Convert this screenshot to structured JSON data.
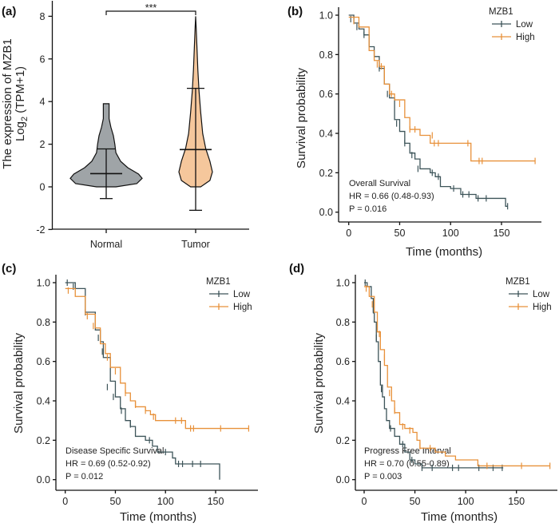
{
  "colors": {
    "low": "#3d5459",
    "high": "#e8913a",
    "normal_fill": "#9fa4a7",
    "tumor_fill": "#f5c79c"
  },
  "chart_data": [
    {
      "panel": "(a)",
      "type": "violin",
      "ylabel_line1": "The expression of MZB1",
      "ylabel_line2_base": "Log",
      "ylabel_line2_sub": "2",
      "ylabel_line2_rest": " (TPM+1)",
      "ylim": [
        -2,
        8
      ],
      "yticks": [
        "-2",
        "0",
        "2",
        "4",
        "6",
        "8"
      ],
      "categories": [
        "Normal",
        "Tumor"
      ],
      "significance": "***",
      "groups": [
        {
          "name": "Normal",
          "mean": 0.62,
          "lower": -0.55,
          "upper": 1.78,
          "density": [
            [
              0,
              0.27
            ],
            [
              0.15,
              0.85
            ],
            [
              0.4,
              1
            ],
            [
              0.6,
              0.9
            ],
            [
              0.9,
              0.6
            ],
            [
              1.2,
              0.4
            ],
            [
              1.6,
              0.27
            ],
            [
              2.0,
              0.24
            ],
            [
              2.4,
              0.2
            ],
            [
              2.8,
              0.13
            ],
            [
              3.2,
              0.08
            ],
            [
              3.9,
              0.08
            ]
          ]
        },
        {
          "name": "Tumor",
          "mean": 1.75,
          "lower": -1.1,
          "upper": 4.62,
          "density": [
            [
              0,
              0.3
            ],
            [
              0.3,
              0.85
            ],
            [
              0.7,
              1
            ],
            [
              1.2,
              0.85
            ],
            [
              1.8,
              0.6
            ],
            [
              2.5,
              0.42
            ],
            [
              3.5,
              0.3
            ],
            [
              4.5,
              0.2
            ],
            [
              5.5,
              0.13
            ],
            [
              6.5,
              0.08
            ],
            [
              7.5,
              0.03
            ],
            [
              8,
              0
            ]
          ]
        }
      ]
    },
    {
      "panel": "(b)",
      "type": "line",
      "xlabel": "Time (months)",
      "ylabel": "Survival probability",
      "xticks": [
        "0",
        "50",
        "100",
        "150"
      ],
      "yticks": [
        "0.0",
        "0.2",
        "0.4",
        "0.6",
        "0.8",
        "1.0"
      ],
      "legend_title": "MZB1",
      "legend_position": "top-right",
      "annotation": [
        "Overall Survival",
        "HR = 0.66 (0.48-0.93)",
        "P = 0.016"
      ],
      "series": [
        {
          "name": "Low",
          "end": 156,
          "steps": [
            [
              0,
              1
            ],
            [
              5,
              0.96
            ],
            [
              10,
              0.93
            ],
            [
              15,
              0.9
            ],
            [
              20,
              0.84
            ],
            [
              25,
              0.79
            ],
            [
              30,
              0.73
            ],
            [
              35,
              0.65
            ],
            [
              40,
              0.58
            ],
            [
              45,
              0.47
            ],
            [
              50,
              0.41
            ],
            [
              55,
              0.35
            ],
            [
              60,
              0.3
            ],
            [
              65,
              0.27
            ],
            [
              70,
              0.22
            ],
            [
              80,
              0.2
            ],
            [
              85,
              0.18
            ],
            [
              90,
              0.13
            ],
            [
              100,
              0.12
            ],
            [
              110,
              0.09
            ],
            [
              125,
              0.07
            ],
            [
              154,
              0.03
            ]
          ],
          "censored": [
            [
              2,
              0.98
            ],
            [
              8,
              0.94
            ],
            [
              15,
              0.9
            ],
            [
              30,
              0.73
            ],
            [
              38,
              0.6
            ],
            [
              47,
              0.45
            ],
            [
              55,
              0.35
            ],
            [
              62,
              0.29
            ],
            [
              68,
              0.22
            ],
            [
              82,
              0.2
            ],
            [
              88,
              0.18
            ],
            [
              103,
              0.12
            ],
            [
              112,
              0.09
            ],
            [
              118,
              0.09
            ],
            [
              127,
              0.07
            ],
            [
              135,
              0.07
            ],
            [
              156,
              0.03
            ]
          ]
        },
        {
          "name": "High",
          "end": 183,
          "steps": [
            [
              0,
              0.99
            ],
            [
              10,
              0.94
            ],
            [
              20,
              0.82
            ],
            [
              25,
              0.77
            ],
            [
              30,
              0.74
            ],
            [
              35,
              0.65
            ],
            [
              40,
              0.6
            ],
            [
              45,
              0.57
            ],
            [
              55,
              0.48
            ],
            [
              60,
              0.42
            ],
            [
              70,
              0.39
            ],
            [
              80,
              0.35
            ],
            [
              120,
              0.26
            ]
          ],
          "censored": [
            [
              5,
              0.97
            ],
            [
              28,
              0.75
            ],
            [
              32,
              0.74
            ],
            [
              42,
              0.6
            ],
            [
              50,
              0.55
            ],
            [
              60,
              0.42
            ],
            [
              65,
              0.42
            ],
            [
              82,
              0.39
            ],
            [
              84,
              0.35
            ],
            [
              88,
              0.35
            ],
            [
              117,
              0.35
            ],
            [
              128,
              0.26
            ],
            [
              131,
              0.26
            ],
            [
              183,
              0.26
            ]
          ]
        }
      ]
    },
    {
      "panel": "(c)",
      "type": "line",
      "xlabel": "Time (months)",
      "ylabel": "Survival probability",
      "xticks": [
        "0",
        "50",
        "100",
        "150"
      ],
      "yticks": [
        "0.0",
        "0.2",
        "0.4",
        "0.6",
        "0.8",
        "1.0"
      ],
      "legend_title": "MZB1",
      "legend_position": "top-right",
      "annotation": [
        "Disease Specific Survival",
        "HR = 0.69 (0.52-0.92)",
        "P = 0.012"
      ],
      "series": [
        {
          "name": "Low",
          "end": 154,
          "steps": [
            [
              0,
              1
            ],
            [
              10,
              0.97
            ],
            [
              20,
              0.85
            ],
            [
              30,
              0.76
            ],
            [
              35,
              0.7
            ],
            [
              38,
              0.62
            ],
            [
              45,
              0.5
            ],
            [
              50,
              0.42
            ],
            [
              55,
              0.36
            ],
            [
              60,
              0.3
            ],
            [
              65,
              0.27
            ],
            [
              70,
              0.22
            ],
            [
              80,
              0.2
            ],
            [
              87,
              0.17
            ],
            [
              92,
              0.14
            ],
            [
              100,
              0.14
            ],
            [
              107,
              0.11
            ],
            [
              110,
              0.08
            ],
            [
              154,
              0
            ]
          ],
          "censored": [
            [
              2,
              1
            ],
            [
              8,
              0.98
            ],
            [
              20,
              0.85
            ],
            [
              33,
              0.72
            ],
            [
              37,
              0.65
            ],
            [
              42,
              0.47
            ],
            [
              48,
              0.42
            ],
            [
              56,
              0.35
            ],
            [
              65,
              0.28
            ],
            [
              84,
              0.2
            ],
            [
              100,
              0.14
            ],
            [
              113,
              0.08
            ],
            [
              117,
              0.08
            ],
            [
              127,
              0.08
            ],
            [
              135,
              0.08
            ]
          ]
        },
        {
          "name": "High",
          "end": 183,
          "steps": [
            [
              0,
              0.97
            ],
            [
              10,
              0.93
            ],
            [
              20,
              0.84
            ],
            [
              30,
              0.77
            ],
            [
              35,
              0.69
            ],
            [
              40,
              0.64
            ],
            [
              45,
              0.57
            ],
            [
              55,
              0.49
            ],
            [
              60,
              0.44
            ],
            [
              65,
              0.4
            ],
            [
              70,
              0.37
            ],
            [
              80,
              0.35
            ],
            [
              85,
              0.33
            ],
            [
              90,
              0.3
            ],
            [
              120,
              0.26
            ]
          ],
          "censored": [
            [
              3,
              0.96
            ],
            [
              22,
              0.83
            ],
            [
              28,
              0.78
            ],
            [
              42,
              0.62
            ],
            [
              50,
              0.55
            ],
            [
              60,
              0.44
            ],
            [
              70,
              0.38
            ],
            [
              80,
              0.35
            ],
            [
              88,
              0.32
            ],
            [
              110,
              0.3
            ],
            [
              116,
              0.3
            ],
            [
              125,
              0.26
            ],
            [
              128,
              0.26
            ],
            [
              155,
              0.26
            ],
            [
              183,
              0.26
            ]
          ]
        }
      ]
    },
    {
      "panel": "(d)",
      "type": "line",
      "xlabel": "Time (months)",
      "ylabel": "Survival probability",
      "xticks": [
        "0",
        "50",
        "100",
        "150"
      ],
      "yticks": [
        "0.0",
        "0.2",
        "0.4",
        "0.6",
        "0.8",
        "1.0"
      ],
      "legend_title": "MZB1",
      "legend_position": "top-right",
      "annotation": [
        "Progress Free Interval",
        "HR = 0.70 (0.55-0.89)",
        "P = 0.003"
      ],
      "series": [
        {
          "name": "Low",
          "end": 137,
          "steps": [
            [
              0,
              1
            ],
            [
              3,
              0.98
            ],
            [
              7,
              0.92
            ],
            [
              9,
              0.85
            ],
            [
              10,
              0.8
            ],
            [
              12,
              0.7
            ],
            [
              14,
              0.6
            ],
            [
              16,
              0.48
            ],
            [
              18,
              0.42
            ],
            [
              20,
              0.36
            ],
            [
              22,
              0.3
            ],
            [
              25,
              0.26
            ],
            [
              30,
              0.22
            ],
            [
              35,
              0.18
            ],
            [
              40,
              0.14
            ],
            [
              45,
              0.1
            ],
            [
              50,
              0.08
            ],
            [
              57,
              0.06
            ]
          ],
          "censored": [
            [
              1,
              1
            ],
            [
              9,
              0.86
            ],
            [
              12,
              0.72
            ],
            [
              17,
              0.46
            ],
            [
              26,
              0.26
            ],
            [
              38,
              0.18
            ],
            [
              47,
              0.1
            ],
            [
              57,
              0.06
            ],
            [
              67,
              0.06
            ],
            [
              87,
              0.06
            ],
            [
              93,
              0.06
            ],
            [
              113,
              0.06
            ],
            [
              127,
              0.06
            ],
            [
              136,
              0.06
            ]
          ]
        },
        {
          "name": "High",
          "end": 183,
          "steps": [
            [
              0,
              0.98
            ],
            [
              5,
              0.93
            ],
            [
              10,
              0.85
            ],
            [
              13,
              0.75
            ],
            [
              16,
              0.66
            ],
            [
              20,
              0.58
            ],
            [
              23,
              0.47
            ],
            [
              27,
              0.4
            ],
            [
              30,
              0.34
            ],
            [
              35,
              0.28
            ],
            [
              40,
              0.26
            ],
            [
              48,
              0.24
            ],
            [
              52,
              0.2
            ],
            [
              55,
              0.16
            ],
            [
              70,
              0.14
            ],
            [
              80,
              0.12
            ],
            [
              90,
              0.1
            ],
            [
              112,
              0.07
            ]
          ],
          "censored": [
            [
              2,
              0.97
            ],
            [
              8,
              0.89
            ],
            [
              15,
              0.74
            ],
            [
              20,
              0.62
            ],
            [
              25,
              0.44
            ],
            [
              30,
              0.35
            ],
            [
              38,
              0.27
            ],
            [
              45,
              0.25
            ],
            [
              55,
              0.17
            ],
            [
              65,
              0.16
            ],
            [
              121,
              0.07
            ],
            [
              155,
              0.07
            ],
            [
              183,
              0.07
            ]
          ]
        }
      ]
    }
  ]
}
